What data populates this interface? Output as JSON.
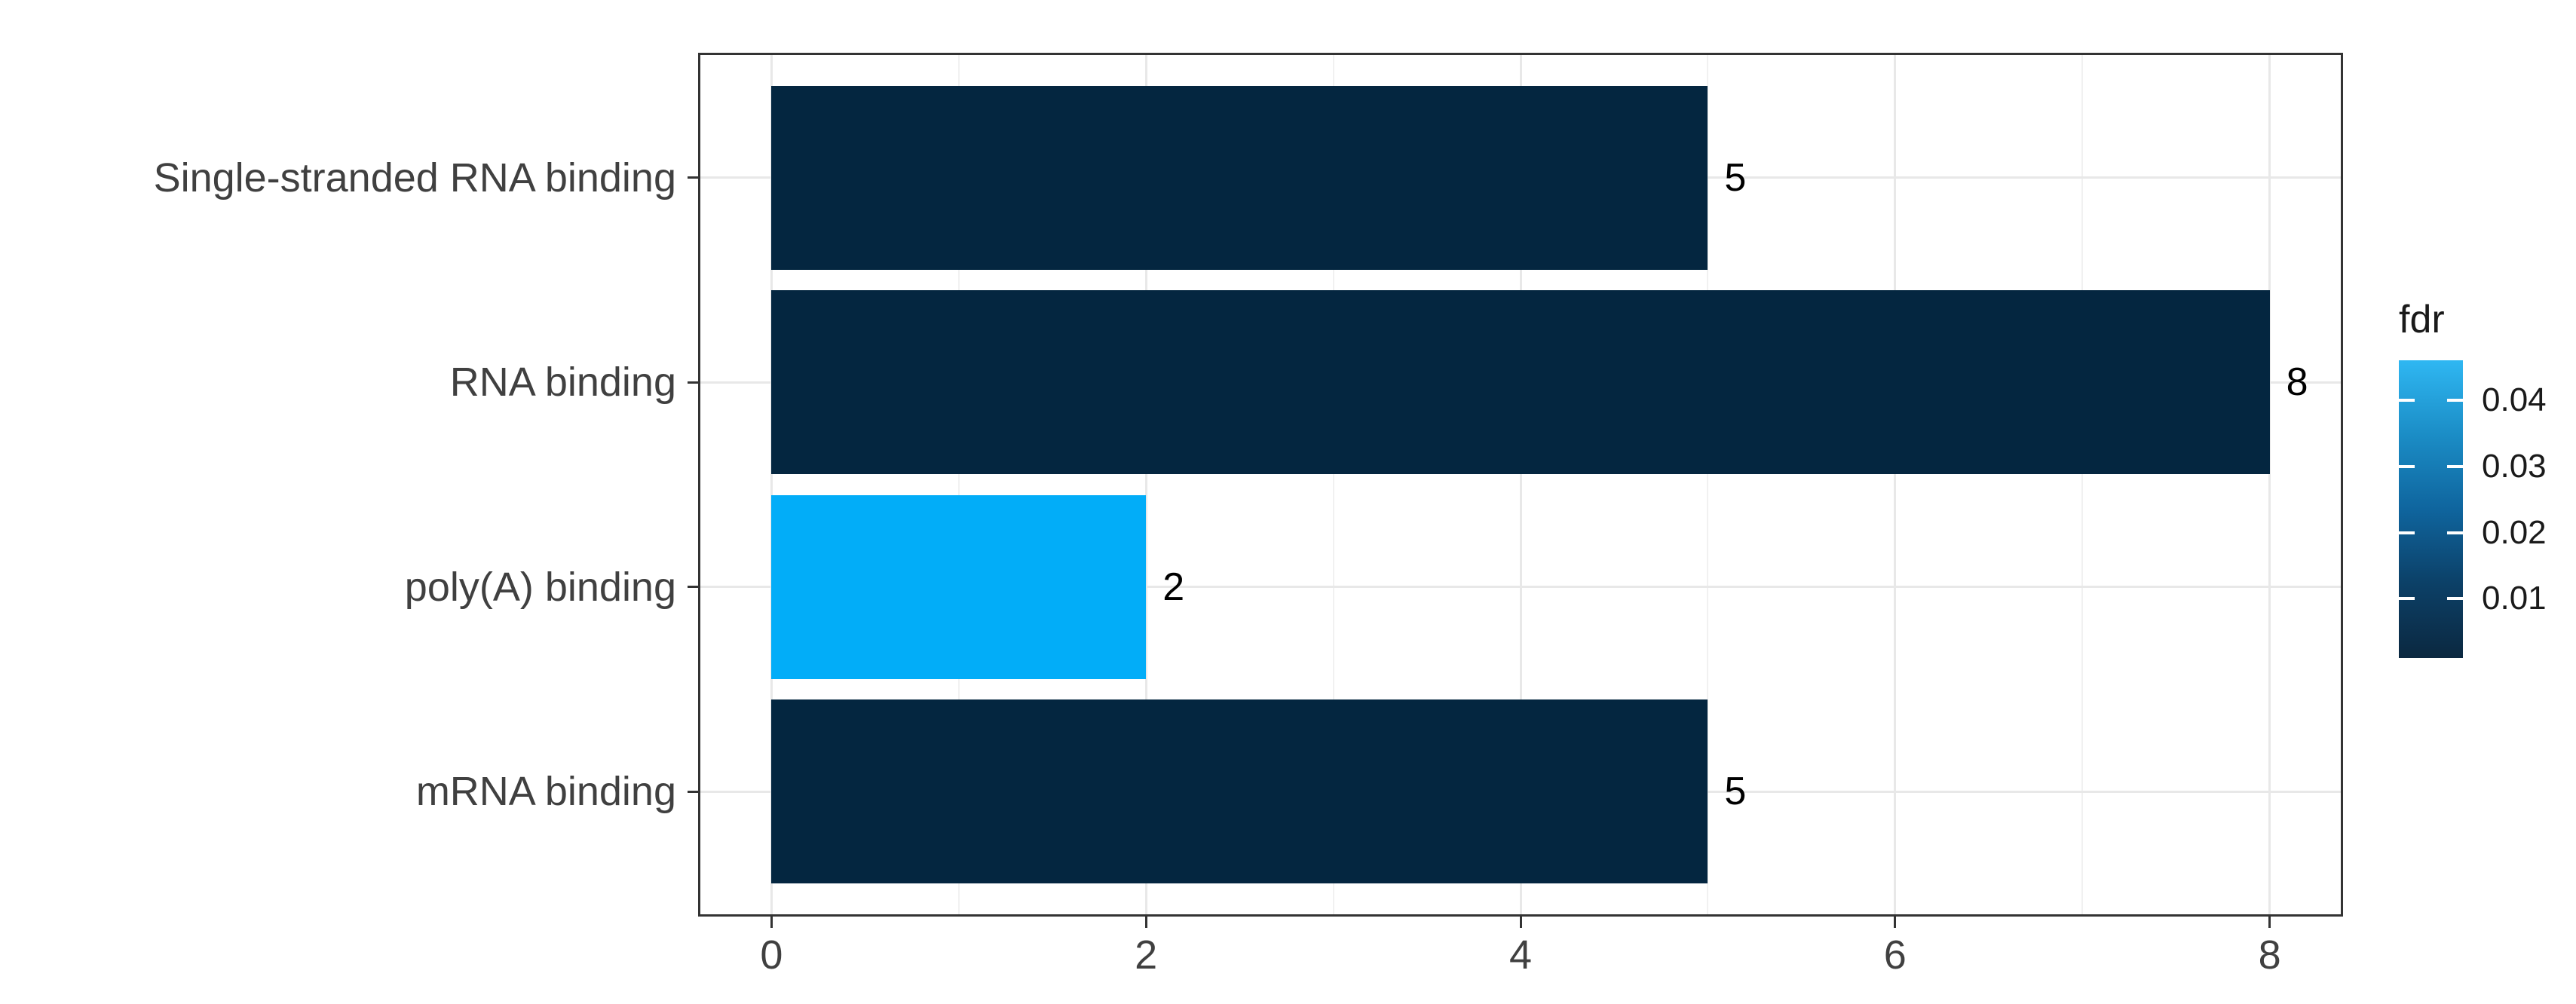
{
  "chart_data": {
    "type": "bar",
    "orientation": "horizontal",
    "title": "",
    "xlabel": "",
    "ylabel": "",
    "categories": [
      "Single-stranded RNA binding",
      "RNA binding",
      "poly(A) binding",
      "mRNA binding"
    ],
    "values": [
      5,
      8,
      2,
      5
    ],
    "value_labels": [
      "5",
      "8",
      "2",
      "5"
    ],
    "bar_colors": [
      "#042640",
      "#042640",
      "#02adf8",
      "#042640"
    ],
    "x_ticks": [
      "0",
      "2",
      "4",
      "6",
      "8"
    ],
    "xlim": [
      -0.38,
      8.38
    ],
    "grid": true,
    "legend": {
      "title": "fdr",
      "position": "right",
      "tick_labels": [
        "0.04",
        "0.03",
        "0.02",
        "0.01"
      ],
      "gradient_colors_top_to_bottom": [
        "#2fb7f2",
        "#1b8dc6",
        "#0f659e",
        "#0c4067",
        "#0b2840"
      ]
    }
  },
  "style": {
    "background": "#ffffff",
    "bar_dark": "#042640",
    "bar_light": "#02adf8",
    "panel_border": "#333333",
    "grid_major": "#e8e8e8",
    "grid_minor": "#f1f1f1",
    "axis_text": "#404040",
    "tick_mark": "#333333",
    "label_text": "#000000"
  }
}
